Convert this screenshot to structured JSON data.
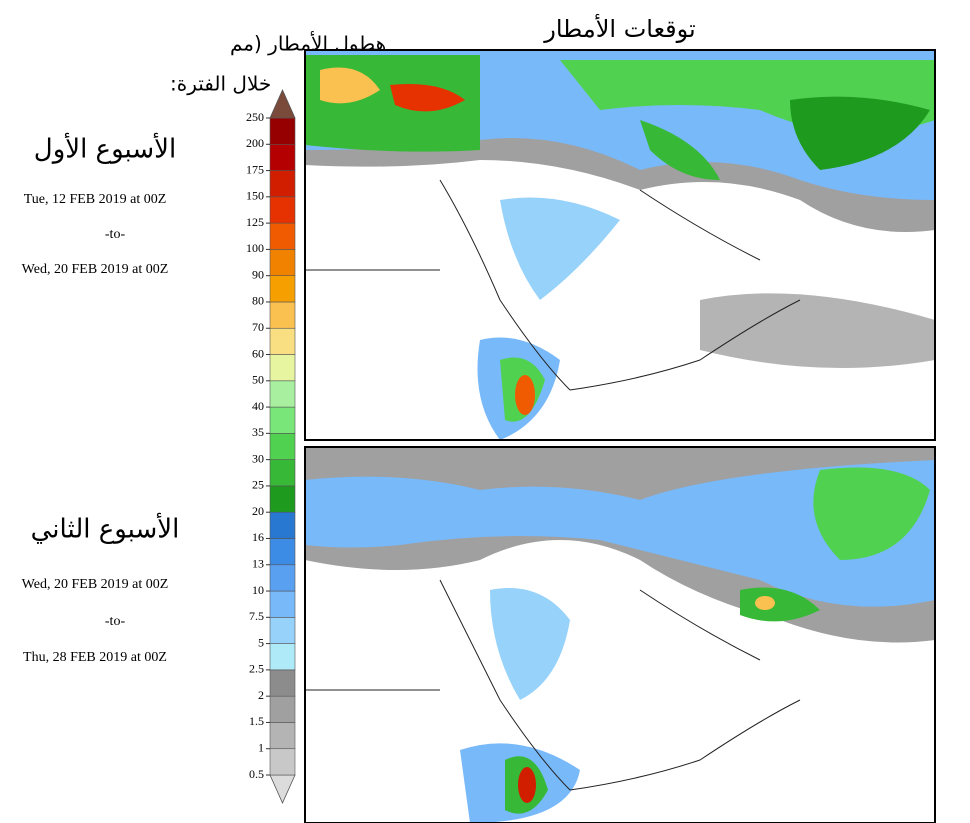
{
  "header": {
    "title": "توقعات الأمطار",
    "side_title": [
      "هطول الأمطار (مم",
      "خلال الفترة:"
    ]
  },
  "weeks": [
    {
      "label": "الأسبوع الأول",
      "from": "Tue, 12 FEB 2019 at 00Z",
      "sep": "-to-",
      "to": "Wed, 20 FEB 2019 at 00Z"
    },
    {
      "label": "الأسبوع الثاني",
      "from": "Wed, 20 FEB 2019 at 00Z",
      "sep": "-to-",
      "to": "Thu, 28 FEB 2019 at 00Z"
    }
  ],
  "colorbar": {
    "levels": [
      0.5,
      1,
      1.5,
      2,
      2.5,
      5,
      7.5,
      10,
      13,
      16,
      20,
      25,
      30,
      35,
      40,
      50,
      60,
      70,
      80,
      90,
      100,
      125,
      150,
      175,
      200,
      250
    ],
    "colors": [
      "#dcdcdc",
      "#c8c8c8",
      "#b4b4b4",
      "#a0a0a0",
      "#8c8c8c",
      "#aeeaf8",
      "#96d2fa",
      "#78b9fa",
      "#5aa0f0",
      "#3c8ce6",
      "#2878d2",
      "#1e9a1e",
      "#37b937",
      "#50d250",
      "#78e678",
      "#a8f0a0",
      "#e8f5a0",
      "#fade82",
      "#fac050",
      "#f5a000",
      "#f08200",
      "#f05a00",
      "#e63200",
      "#d21e00",
      "#b40000",
      "#960000",
      "#7a4a3a"
    ]
  }
}
